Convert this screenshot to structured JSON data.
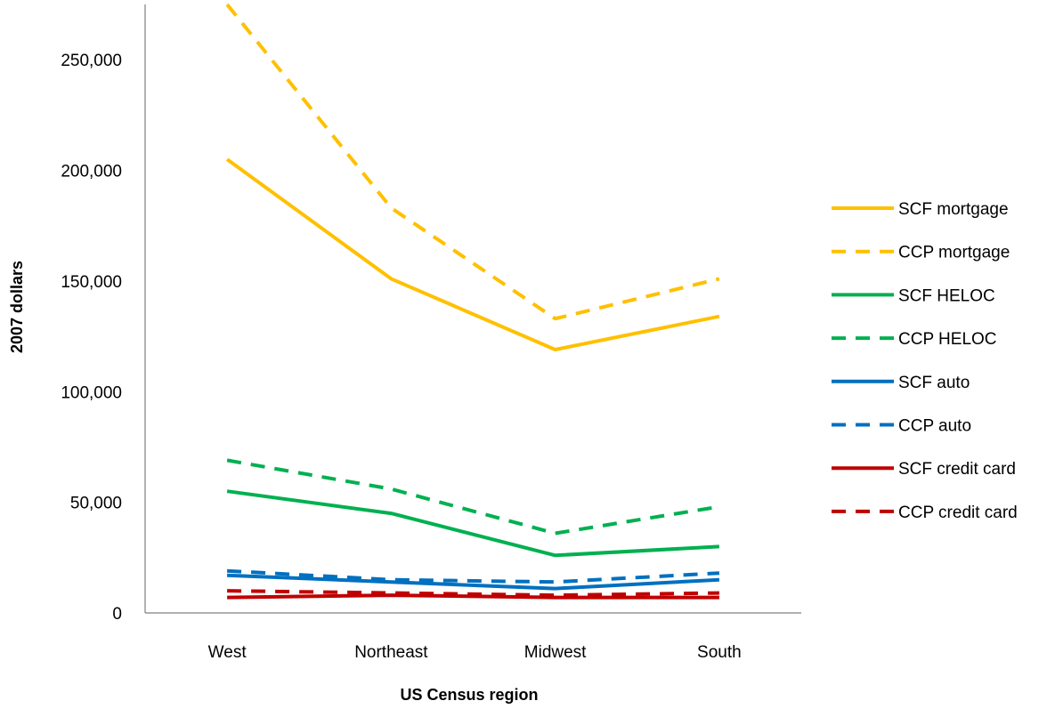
{
  "chart_data": {
    "type": "line",
    "categories": [
      "West",
      "Northeast",
      "Midwest",
      "South"
    ],
    "xlabel": "US Census region",
    "ylabel": "2007 dollars",
    "ylim": [
      0,
      275000
    ],
    "yticks": [
      0,
      50000,
      100000,
      150000,
      200000,
      250000
    ],
    "ytick_labels": [
      "0",
      "50,000",
      "100,000",
      "150,000",
      "200,000",
      "250,000"
    ],
    "grid": false,
    "legend_position": "right",
    "series": [
      {
        "name": "SCF mortgage",
        "color": "#FFC000",
        "style": "solid",
        "values": [
          205000,
          151000,
          119000,
          134000
        ]
      },
      {
        "name": "CCP mortgage",
        "color": "#FFC000",
        "style": "dashed",
        "values": [
          275000,
          183000,
          133000,
          151000
        ]
      },
      {
        "name": "SCF HELOC",
        "color": "#00B050",
        "style": "solid",
        "values": [
          55000,
          45000,
          26000,
          30000
        ]
      },
      {
        "name": "CCP HELOC",
        "color": "#00B050",
        "style": "dashed",
        "values": [
          69000,
          56000,
          36000,
          48000
        ]
      },
      {
        "name": "SCF auto",
        "color": "#0070C0",
        "style": "solid",
        "values": [
          17000,
          14000,
          11000,
          15000
        ]
      },
      {
        "name": "CCP auto",
        "color": "#0070C0",
        "style": "dashed",
        "values": [
          19000,
          15000,
          14000,
          18000
        ]
      },
      {
        "name": "SCF credit card",
        "color": "#C00000",
        "style": "solid",
        "values": [
          7000,
          8000,
          7000,
          7000
        ]
      },
      {
        "name": "CCP credit card",
        "color": "#C00000",
        "style": "dashed",
        "values": [
          10000,
          9000,
          8000,
          9000
        ]
      }
    ]
  }
}
